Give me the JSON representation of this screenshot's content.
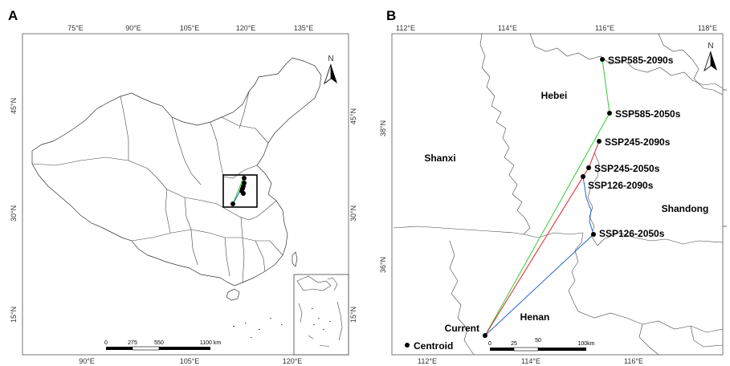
{
  "panel_a": {
    "letter": "A",
    "top_ticks": [
      "75°E",
      "90°E",
      "105°E",
      "120°E",
      "135°E"
    ],
    "bottom_ticks": [
      "90°E",
      "105°E",
      "120°E"
    ],
    "left_ticks": [
      "45°N",
      "30°N",
      "15°N"
    ],
    "right_ticks": [
      "45°N",
      "30°N",
      "15°N"
    ],
    "scale_labels": [
      "0",
      "275",
      "550",
      "1100 km"
    ],
    "north": "N"
  },
  "panel_b": {
    "letter": "B",
    "top_ticks": [
      "112°E",
      "114°E",
      "116°E",
      "118°E"
    ],
    "bottom_ticks": [
      "112°E",
      "114°E",
      "116°E"
    ],
    "left_ticks": [
      "38°N",
      "36°N"
    ],
    "north": "N",
    "scale_labels": [
      "0",
      "25",
      "50",
      "100km"
    ],
    "provinces": [
      "Hebei",
      "Shanxi",
      "Shandong",
      "Henan"
    ],
    "centroids": [
      {
        "label": "SSP585-2090s"
      },
      {
        "label": "SSP585-2050s"
      },
      {
        "label": "SSP245-2090s"
      },
      {
        "label": "SSP245-2050s"
      },
      {
        "label": "SSP126-2090s"
      },
      {
        "label": "SSP126-2050s"
      },
      {
        "label": "Current"
      },
      {
        "label": "Centroid"
      }
    ],
    "path_colors": {
      "ssp585": "#33cc33",
      "ssp245": "#dd2222",
      "ssp126": "#2266cc"
    }
  }
}
